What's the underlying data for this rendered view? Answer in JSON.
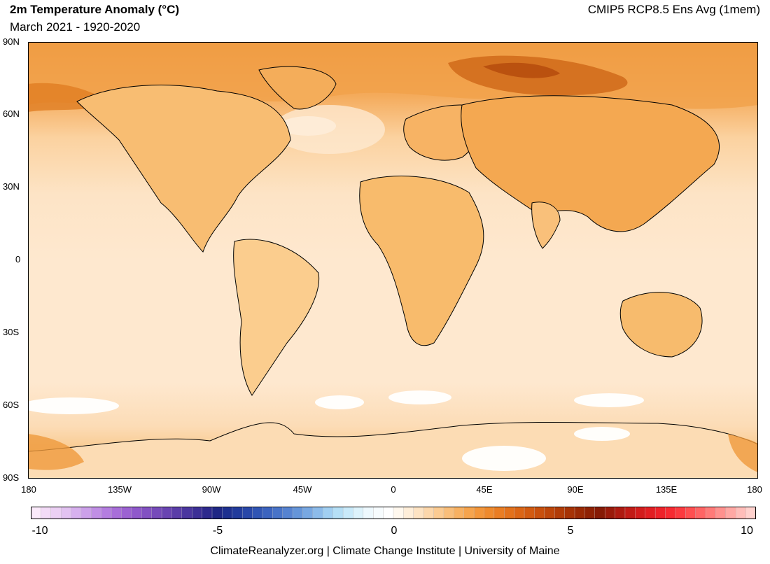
{
  "header": {
    "title": "2m Temperature Anomaly (°C)",
    "subtitle": "March 2021 - 1920-2020",
    "dataset": "CMIP5 RCP8.5 Ens Avg (1mem)"
  },
  "map": {
    "lat_ticks": [
      "90N",
      "60N",
      "30N",
      "0",
      "30S",
      "60S",
      "90S"
    ],
    "lon_ticks": [
      "180",
      "135W",
      "90W",
      "45W",
      "0",
      "45E",
      "90E",
      "135E",
      "180"
    ],
    "colors": {
      "ocean_base": "#fee8cf",
      "land_base": "#fcd49c",
      "warm_mid": "#f8b35f",
      "warm_high": "#ec8a2a",
      "warm_max": "#c95d14",
      "cool_zero": "#ffffff",
      "coast": "#000000"
    }
  },
  "colorbar": {
    "min": -10,
    "max": 10,
    "tick_labels": [
      "-10",
      "-5",
      "0",
      "5",
      "10"
    ],
    "colors": [
      "#fbeafb",
      "#f3dbf7",
      "#ecd0f4",
      "#e2c2f1",
      "#d7b0ee",
      "#cca0ea",
      "#c08ee5",
      "#b47de0",
      "#a86ed9",
      "#9c62d2",
      "#8f58cb",
      "#8251c2",
      "#764bba",
      "#6944b2",
      "#5a3da8",
      "#4b369f",
      "#3c2f96",
      "#2d298d",
      "#1f2785",
      "#1d3090",
      "#213b9c",
      "#2847a8",
      "#3055b4",
      "#3b63bf",
      "#4873c8",
      "#5683d1",
      "#6595d9",
      "#78a8e2",
      "#8cbbea",
      "#a1cff2",
      "#b5dff6",
      "#c9eafa",
      "#ddf3fc",
      "#eef9fe",
      "#f7fcfe",
      "#ffffff",
      "#fff8ee",
      "#feeed9",
      "#fde3c3",
      "#fcd7ab",
      "#fbcb92",
      "#f9be7a",
      "#f8b162",
      "#f6a44d",
      "#f3963a",
      "#ef8a2d",
      "#ea7d23",
      "#e3711b",
      "#db6515",
      "#d25a10",
      "#c84f0c",
      "#bd4509",
      "#b13b07",
      "#a63205",
      "#9a2904",
      "#8f2104",
      "#861a05",
      "#9a1a0a",
      "#ae1a10",
      "#c21b16",
      "#d31c1c",
      "#e21e22",
      "#ee2229",
      "#f72a31",
      "#fc3a3f",
      "#ff4f50",
      "#ff6464",
      "#ff7a78",
      "#ff918e",
      "#ffa8a4",
      "#ffbdb9",
      "#ffd1cd"
    ]
  },
  "footer": {
    "credit": "ClimateReanalyzer.org | Climate Change Institute | University of Maine"
  }
}
